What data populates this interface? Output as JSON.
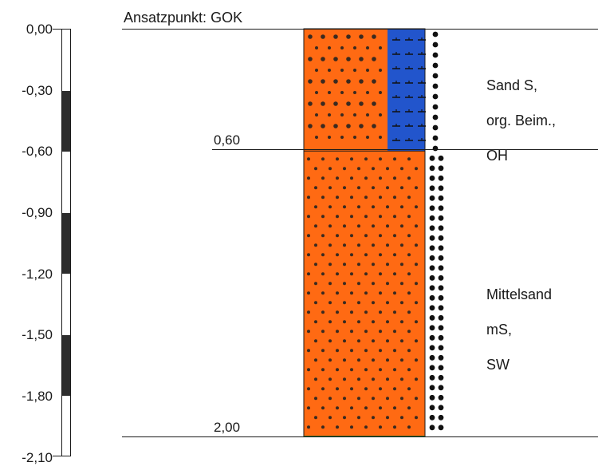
{
  "header": {
    "title": "Ansatzpunkt: GOK"
  },
  "depth_scale": {
    "labels": [
      "0,00",
      "-0,30",
      "-0,60",
      "-0,90",
      "-1,20",
      "-1,50",
      "-1,80",
      "-2,10"
    ],
    "max_depth_m": 2.1,
    "dark_intervals_m": [
      [
        0.3,
        0.6
      ],
      [
        0.9,
        1.2
      ],
      [
        1.5,
        1.8
      ]
    ]
  },
  "boundaries": [
    {
      "depth_m": 0.6,
      "label": "0,60"
    },
    {
      "depth_m": 2.0,
      "label": "2,00"
    }
  ],
  "layers": [
    {
      "top_m": 0.0,
      "bottom_m": 0.6,
      "soil": "Sand S",
      "description_lines": [
        "Sand S,",
        "org. Beim.,",
        "OH"
      ],
      "main_color": "#ff6a13",
      "organic_color": "#2255cc",
      "symbol": "dots-large"
    },
    {
      "top_m": 0.6,
      "bottom_m": 2.0,
      "soil": "Mittelsand",
      "description_lines": [
        "Mittelsand",
        "mS,",
        "SW"
      ],
      "main_color": "#ff6a13",
      "symbol": "dots-medium"
    }
  ],
  "colors": {
    "line": "#1a1a1a",
    "dot": "#3a2a20",
    "bottom_line": "#2a6a2a"
  }
}
